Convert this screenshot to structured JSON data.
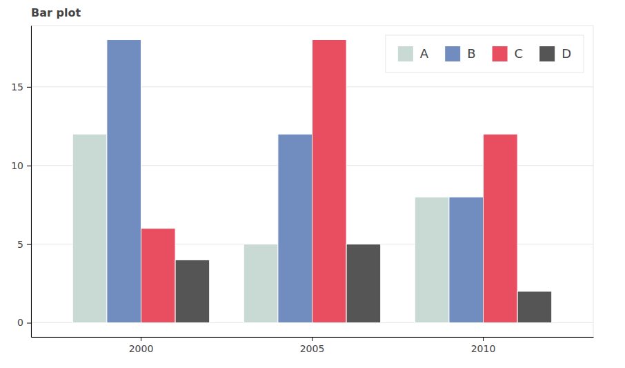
{
  "chart_data": {
    "type": "bar",
    "title": "Bar plot",
    "categories": [
      "2000",
      "2005",
      "2010"
    ],
    "series": [
      {
        "name": "A",
        "color": "#c9d9d3",
        "values": [
          12,
          5,
          8
        ]
      },
      {
        "name": "B",
        "color": "#718dbf",
        "values": [
          18,
          12,
          8
        ]
      },
      {
        "name": "C",
        "color": "#e84d60",
        "values": [
          6,
          18,
          12
        ]
      },
      {
        "name": "D",
        "color": "#555555",
        "values": [
          4,
          5,
          2
        ]
      }
    ],
    "ylim": [
      -0.9,
      18.9
    ],
    "yticks": [
      0,
      5,
      10,
      15
    ],
    "grid": true,
    "legend": "top_right"
  }
}
